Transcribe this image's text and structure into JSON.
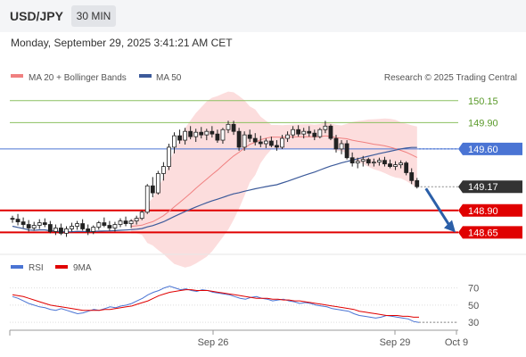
{
  "header": {
    "symbol": "USD/JPY",
    "timeframe": "30 MIN",
    "datetime": "Monday, September 29, 2025 3:41:21 AM CET"
  },
  "legend": {
    "ma20_bb": "MA 20 + Bollinger Bands",
    "ma50": "MA 50",
    "credit": "Research © 2025 Trading Central"
  },
  "rsi_legend": {
    "rsi": "RSI",
    "ma9": "9MA"
  },
  "colors": {
    "ma20": "#f08080",
    "bb_fill": "#fbd5d5",
    "ma50": "#3c5a9a",
    "support_red": "#e00000",
    "resistance_green": "#8cc060",
    "pivot_blue": "#4a74d4",
    "current_tag": "#333333",
    "arrow": "#2b5fa8",
    "rsi": "#4a74d4",
    "rsi_ma9": "#e00000"
  },
  "chart_data": [
    {
      "type": "line",
      "title": "USD/JPY 30 MIN",
      "ylim": [
        148.4,
        150.3
      ],
      "x_ticks": [
        "Sep 26",
        "Sep 29",
        "Oct 9"
      ],
      "levels": [
        {
          "value": 150.15,
          "label": "150.15",
          "kind": "resistance"
        },
        {
          "value": 149.9,
          "label": "149.90",
          "kind": "resistance"
        },
        {
          "value": 149.6,
          "label": "149.60",
          "kind": "pivot"
        },
        {
          "value": 149.17,
          "label": "149.17",
          "kind": "current"
        },
        {
          "value": 148.9,
          "label": "148.90",
          "kind": "support"
        },
        {
          "value": 148.65,
          "label": "148.65",
          "kind": "support"
        }
      ],
      "candles": [
        [
          148.81,
          148.84,
          148.76,
          148.8
        ],
        [
          148.8,
          148.86,
          148.73,
          148.77
        ],
        [
          148.77,
          148.82,
          148.7,
          148.74
        ],
        [
          148.74,
          148.79,
          148.66,
          148.7
        ],
        [
          148.7,
          148.77,
          148.67,
          148.73
        ],
        [
          148.73,
          148.8,
          148.69,
          148.76
        ],
        [
          148.76,
          148.81,
          148.71,
          148.74
        ],
        [
          148.74,
          148.78,
          148.64,
          148.66
        ],
        [
          148.66,
          148.74,
          148.62,
          148.7
        ],
        [
          148.7,
          148.75,
          148.62,
          148.64
        ],
        [
          148.64,
          148.72,
          148.6,
          148.69
        ],
        [
          148.69,
          148.76,
          148.66,
          148.72
        ],
        [
          148.72,
          148.78,
          148.68,
          148.75
        ],
        [
          148.75,
          148.8,
          148.67,
          148.69
        ],
        [
          148.69,
          148.74,
          148.62,
          148.66
        ],
        [
          148.66,
          148.73,
          148.63,
          148.71
        ],
        [
          148.71,
          148.78,
          148.68,
          148.76
        ],
        [
          148.76,
          148.82,
          148.71,
          148.73
        ],
        [
          148.73,
          148.78,
          148.67,
          148.7
        ],
        [
          148.7,
          148.77,
          148.66,
          148.74
        ],
        [
          148.74,
          148.81,
          148.71,
          148.78
        ],
        [
          148.78,
          148.83,
          148.72,
          148.75
        ],
        [
          148.75,
          148.8,
          148.7,
          148.78
        ],
        [
          148.78,
          148.84,
          148.74,
          148.81
        ],
        [
          148.81,
          148.9,
          148.79,
          148.88
        ],
        [
          148.88,
          149.2,
          148.86,
          149.18
        ],
        [
          149.18,
          149.28,
          149.05,
          149.1
        ],
        [
          149.1,
          149.35,
          149.08,
          149.32
        ],
        [
          149.32,
          149.45,
          149.24,
          149.4
        ],
        [
          149.4,
          149.66,
          149.36,
          149.62
        ],
        [
          149.62,
          149.79,
          149.55,
          149.75
        ],
        [
          149.75,
          149.82,
          149.66,
          149.7
        ],
        [
          149.7,
          149.84,
          149.65,
          149.8
        ],
        [
          149.8,
          149.86,
          149.71,
          149.74
        ],
        [
          149.74,
          149.83,
          149.68,
          149.79
        ],
        [
          149.79,
          149.85,
          149.72,
          149.76
        ],
        [
          149.76,
          149.83,
          149.7,
          149.8
        ],
        [
          149.8,
          149.86,
          149.73,
          149.77
        ],
        [
          149.77,
          149.82,
          149.67,
          149.7
        ],
        [
          149.7,
          149.84,
          149.66,
          149.82
        ],
        [
          149.82,
          149.92,
          149.78,
          149.88
        ],
        [
          149.88,
          149.92,
          149.76,
          149.8
        ],
        [
          149.8,
          149.84,
          149.58,
          149.62
        ],
        [
          149.62,
          149.8,
          149.58,
          149.76
        ],
        [
          149.76,
          149.82,
          149.68,
          149.72
        ],
        [
          149.72,
          149.78,
          149.64,
          149.68
        ],
        [
          149.68,
          149.75,
          149.62,
          149.66
        ],
        [
          149.66,
          149.72,
          149.61,
          149.69
        ],
        [
          149.69,
          149.74,
          149.62,
          149.64
        ],
        [
          149.64,
          149.7,
          149.58,
          149.62
        ],
        [
          149.62,
          149.76,
          149.6,
          149.72
        ],
        [
          149.72,
          149.8,
          149.68,
          149.76
        ],
        [
          149.76,
          149.86,
          149.72,
          149.82
        ],
        [
          149.82,
          149.87,
          149.74,
          149.77
        ],
        [
          149.77,
          149.84,
          149.72,
          149.8
        ],
        [
          149.8,
          149.86,
          149.74,
          149.78
        ],
        [
          149.78,
          149.82,
          149.7,
          149.74
        ],
        [
          149.74,
          149.84,
          149.72,
          149.82
        ],
        [
          149.82,
          149.92,
          149.78,
          149.86
        ],
        [
          149.86,
          149.88,
          149.7,
          149.72
        ],
        [
          149.72,
          149.76,
          149.56,
          149.6
        ],
        [
          149.6,
          149.7,
          149.54,
          149.66
        ],
        [
          149.66,
          149.7,
          149.48,
          149.5
        ],
        [
          149.5,
          149.56,
          149.4,
          149.44
        ],
        [
          149.44,
          149.5,
          149.38,
          149.46
        ],
        [
          149.46,
          149.52,
          149.4,
          149.48
        ],
        [
          149.48,
          149.5,
          149.41,
          149.44
        ],
        [
          149.44,
          149.49,
          149.4,
          149.45
        ],
        [
          149.45,
          149.5,
          149.41,
          149.47
        ],
        [
          149.47,
          149.51,
          149.4,
          149.43
        ],
        [
          149.43,
          149.48,
          149.38,
          149.4
        ],
        [
          149.4,
          149.46,
          149.36,
          149.42
        ],
        [
          149.42,
          149.47,
          149.38,
          149.44
        ],
        [
          149.44,
          149.46,
          149.3,
          149.33
        ],
        [
          149.33,
          149.38,
          149.2,
          149.24
        ],
        [
          149.24,
          149.27,
          149.15,
          149.17
        ]
      ]
    },
    {
      "type": "line",
      "title": "RSI",
      "ylim": [
        25,
        80
      ],
      "y_ticks": [
        70,
        50,
        30
      ],
      "rsi": [
        60,
        58,
        55,
        52,
        50,
        48,
        47,
        45,
        44,
        46,
        44,
        42,
        40,
        41,
        43,
        45,
        44,
        46,
        48,
        47,
        49,
        50,
        52,
        55,
        58,
        62,
        65,
        67,
        70,
        72,
        70,
        68,
        69,
        67,
        66,
        68,
        67,
        65,
        64,
        63,
        62,
        60,
        58,
        57,
        59,
        60,
        58,
        57,
        55,
        56,
        57,
        55,
        54,
        52,
        53,
        52,
        50,
        49,
        48,
        46,
        45,
        44,
        43,
        40,
        38,
        37,
        36,
        35,
        36,
        38,
        37,
        36,
        35,
        34,
        31,
        30
      ],
      "ma9": [
        62,
        61,
        60,
        58,
        56,
        54,
        52,
        50,
        49,
        48,
        47,
        46,
        45,
        44,
        44,
        44,
        44,
        45,
        45,
        46,
        47,
        48,
        49,
        51,
        53,
        55,
        58,
        61,
        63,
        65,
        66,
        67,
        68,
        68,
        67,
        67,
        67,
        66,
        65,
        64,
        63,
        62,
        61,
        60,
        59,
        58,
        58,
        58,
        57,
        57,
        56,
        56,
        55,
        55,
        54,
        53,
        52,
        51,
        50,
        49,
        48,
        47,
        46,
        45,
        43,
        42,
        41,
        40,
        39,
        38,
        38,
        38,
        37,
        37,
        36,
        36
      ]
    }
  ]
}
